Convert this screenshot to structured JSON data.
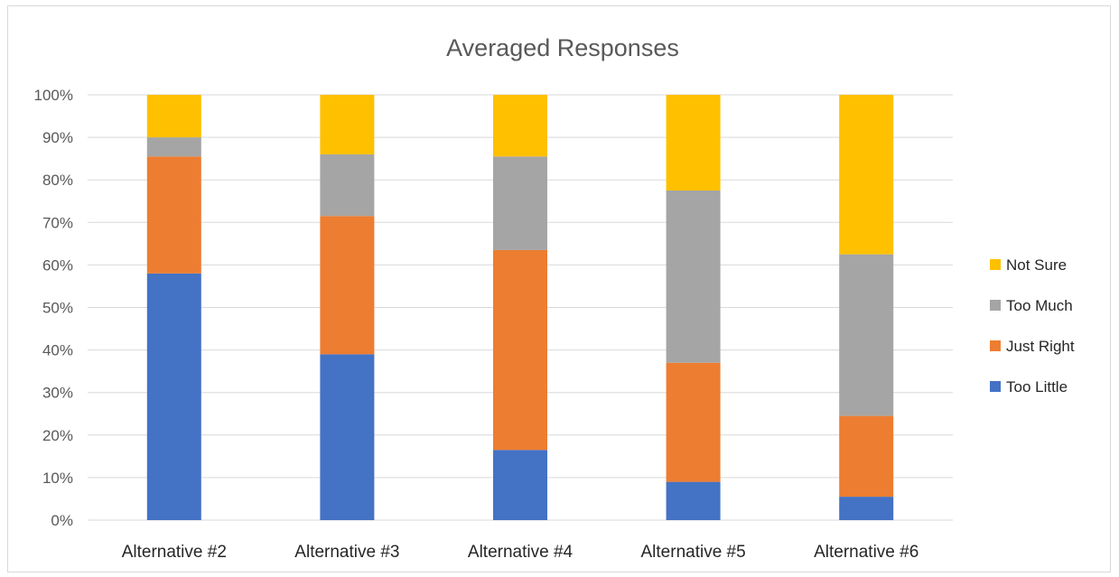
{
  "chart_data": {
    "type": "bar",
    "stacked": true,
    "percent_stacked": true,
    "title": "Averaged Responses",
    "categories": [
      "Alternative #2",
      "Alternative #3",
      "Alternative #4",
      "Alternative #5",
      "Alternative #6"
    ],
    "series": [
      {
        "name": "Too Little",
        "color": "#4472C4",
        "values": [
          58,
          39,
          16.5,
          9,
          5.5
        ]
      },
      {
        "name": "Just Right",
        "color": "#ED7D31",
        "values": [
          27.5,
          32.5,
          47,
          28,
          19
        ]
      },
      {
        "name": "Too Much",
        "color": "#A5A5A5",
        "values": [
          4.5,
          14.5,
          22,
          40.5,
          38
        ]
      },
      {
        "name": "Not Sure",
        "color": "#FFC000",
        "values": [
          10,
          14,
          14.5,
          22.5,
          37.5
        ]
      }
    ],
    "ylim": [
      0,
      100
    ],
    "yticks": [
      "0%",
      "10%",
      "20%",
      "30%",
      "40%",
      "50%",
      "60%",
      "70%",
      "80%",
      "90%",
      "100%"
    ],
    "xlabel": "",
    "ylabel": "",
    "grid": true,
    "legend_position": "right",
    "legend_order": [
      "Not Sure",
      "Too Much",
      "Just Right",
      "Too Little"
    ]
  }
}
